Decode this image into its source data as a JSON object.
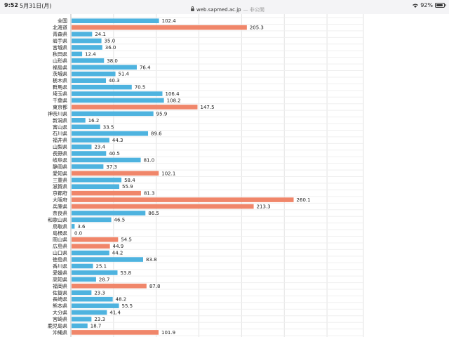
{
  "status_bar": {
    "time": "9:52",
    "date": "5月31日(月)",
    "url": "web.sapmed.ac.jp",
    "url_suffix": "— 非公開",
    "battery": "92%",
    "battery_level": 0.92
  },
  "colors": {
    "normal": "#4eb3df",
    "highlight": "#f0866a",
    "grid": "#e3e3e3"
  },
  "chart_data": {
    "type": "bar",
    "orientation": "horizontal",
    "grid": true,
    "categories": [
      "全国",
      "北海道",
      "青森県",
      "岩手県",
      "宮城県",
      "秋田県",
      "山形県",
      "福島県",
      "茨城県",
      "栃木県",
      "群馬県",
      "埼玉県",
      "千葉県",
      "東京都",
      "神奈川県",
      "新潟県",
      "富山県",
      "石川県",
      "福井県",
      "山梨県",
      "長野県",
      "岐阜県",
      "静岡県",
      "愛知県",
      "三重県",
      "滋賀県",
      "京都府",
      "大阪府",
      "兵庫県",
      "奈良県",
      "和歌山県",
      "鳥取県",
      "島根県",
      "岡山県",
      "広島県",
      "山口県",
      "徳島県",
      "香川県",
      "愛媛県",
      "高知県",
      "福岡県",
      "佐賀県",
      "長崎県",
      "熊本県",
      "大分県",
      "宮崎県",
      "鹿児島県",
      "沖縄県"
    ],
    "values": [
      102.4,
      205.3,
      24.1,
      35.0,
      36.0,
      12.4,
      38.0,
      76.4,
      51.4,
      40.3,
      70.5,
      106.4,
      108.2,
      147.5,
      95.9,
      16.2,
      33.5,
      89.6,
      44.3,
      23.4,
      40.5,
      81.0,
      37.3,
      102.1,
      58.4,
      55.9,
      81.3,
      260.1,
      213.3,
      86.5,
      46.5,
      3.6,
      0.0,
      54.5,
      44.9,
      44.2,
      83.8,
      25.1,
      53.8,
      28.7,
      87.8,
      23.3,
      48.2,
      55.5,
      41.4,
      23.3,
      18.7,
      101.9
    ],
    "labels": [
      "102.4",
      "205.3",
      "24.1",
      "35.0",
      "36.0",
      "12.4",
      "38.0",
      "76.4",
      "51.4",
      "40.3",
      "70.5",
      "106.4",
      "108.2",
      "147.5",
      "95.9",
      "16.2",
      "33.5",
      "89.6",
      "44.3",
      "23.4",
      "40.5",
      "81.0",
      "37.3",
      "102.1",
      "58.4",
      "55.9",
      "81.3",
      "260.1",
      "213.3",
      "86.5",
      "46.5",
      "3.6",
      "0.0",
      "54.5",
      "44.9",
      "44.2",
      "83.8",
      "25.1",
      "53.8",
      "28.7",
      "87.8",
      "23.3",
      "48.2",
      "55.5",
      "41.4",
      "23.3",
      "18.7",
      "101.9"
    ],
    "highlighted": [
      "北海道",
      "東京都",
      "愛知県",
      "京都府",
      "大阪府",
      "兵庫県",
      "岡山県",
      "広島県",
      "福岡県",
      "沖縄県"
    ],
    "xlim": [
      0,
      300
    ]
  }
}
